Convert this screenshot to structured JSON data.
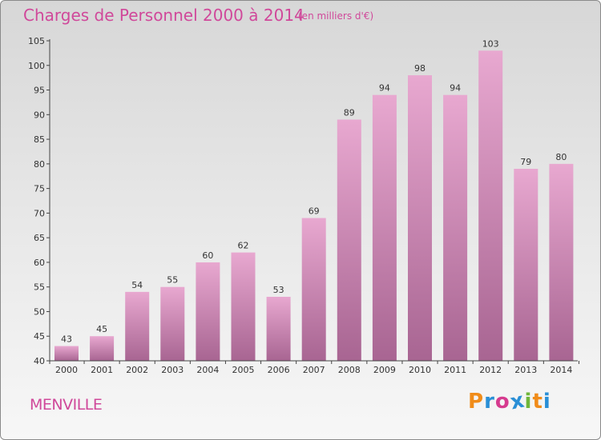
{
  "header": {
    "title": "Charges de Personnel 2000 à 2014",
    "subtitle": "(en milliers d'€)"
  },
  "footer": {
    "commune": "MENVILLE",
    "brand_letters": [
      "P",
      "r",
      "o",
      "x",
      "i",
      "t",
      "i"
    ],
    "brand_colors": [
      "#f08c1a",
      "#2a8fd6",
      "#d63b8f",
      "#2a8fd6",
      "#6fb63a",
      "#f08c1a",
      "#2a8fd6"
    ]
  },
  "colors": {
    "bar_top": "#e8a8d0",
    "bar_bottom": "#a86592",
    "text": "#d0489a",
    "axis": "#444444"
  },
  "chart_data": {
    "type": "bar",
    "categories": [
      "2000",
      "2001",
      "2002",
      "2003",
      "2004",
      "2005",
      "2006",
      "2007",
      "2008",
      "2009",
      "2010",
      "2011",
      "2012",
      "2013",
      "2014"
    ],
    "values": [
      43,
      45,
      54,
      55,
      60,
      62,
      53,
      69,
      89,
      94,
      98,
      94,
      103,
      79,
      80
    ],
    "title": "Charges de Personnel 2000 à 2014",
    "subtitle": "(en milliers d'€)",
    "xlabel": "",
    "ylabel": "",
    "ylim": [
      40,
      105
    ],
    "yticks": [
      40,
      45,
      50,
      55,
      60,
      65,
      70,
      75,
      80,
      85,
      90,
      95,
      100,
      105
    ],
    "grid": false,
    "legend": "none"
  }
}
